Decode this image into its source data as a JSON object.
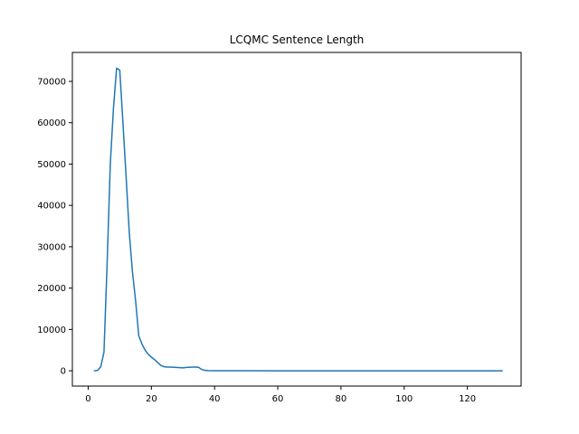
{
  "chart_data": {
    "type": "line",
    "title": "LCQMC Sentence Length",
    "xlabel": "",
    "ylabel": "",
    "xlim": [
      -5,
      137
    ],
    "ylim": [
      -3700,
      77000
    ],
    "grid": false,
    "line_color": "#1f77b4",
    "x_ticks": [
      0,
      20,
      40,
      60,
      80,
      100,
      120
    ],
    "y_ticks": [
      0,
      10000,
      20000,
      30000,
      40000,
      50000,
      60000,
      70000
    ],
    "series": [
      {
        "x": [
          2,
          3,
          4,
          5,
          6,
          7,
          8,
          9,
          10,
          11,
          12,
          13,
          14,
          15,
          16,
          17,
          18,
          19,
          20,
          21,
          22,
          23,
          24,
          25,
          26,
          27,
          28,
          29,
          30,
          31,
          32,
          33,
          34,
          35,
          36,
          37,
          38,
          40,
          45,
          50,
          60,
          70,
          80,
          90,
          100,
          110,
          120,
          131
        ],
        "values": [
          0,
          100,
          1000,
          4500,
          26000,
          50000,
          63500,
          73200,
          72700,
          60000,
          47000,
          33500,
          24000,
          17000,
          8500,
          6500,
          5000,
          4000,
          3300,
          2700,
          2000,
          1300,
          1000,
          900,
          900,
          850,
          800,
          750,
          700,
          800,
          850,
          900,
          900,
          800,
          300,
          100,
          50,
          20,
          10,
          5,
          0,
          0,
          0,
          0,
          0,
          0,
          0,
          0
        ]
      }
    ]
  }
}
